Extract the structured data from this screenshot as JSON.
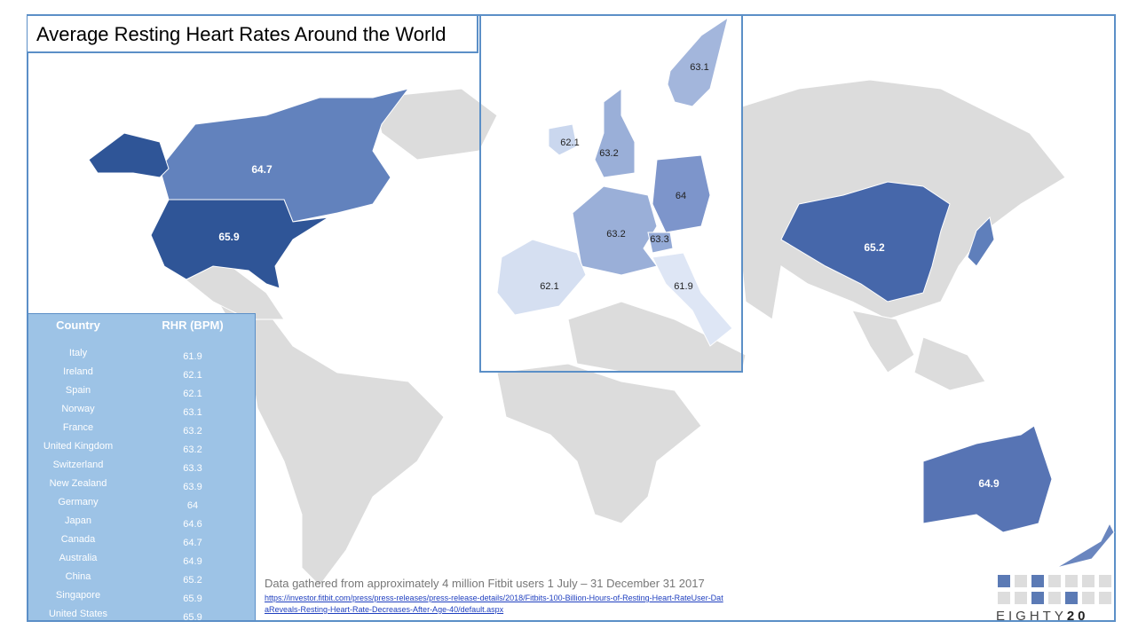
{
  "title": "Average Resting Heart Rates Around the World",
  "table": {
    "headers": [
      "Country",
      "RHR (BPM)"
    ],
    "rows": [
      [
        "Italy",
        61.9
      ],
      [
        "Ireland",
        62.1
      ],
      [
        "Spain",
        62.1
      ],
      [
        "Norway",
        63.1
      ],
      [
        "France",
        63.2
      ],
      [
        "United Kingdom",
        63.2
      ],
      [
        "Switzerland",
        63.3
      ],
      [
        "New Zealand",
        63.9
      ],
      [
        "Germany",
        64
      ],
      [
        "Japan",
        64.6
      ],
      [
        "Canada",
        64.7
      ],
      [
        "Australia",
        64.9
      ],
      [
        "China",
        65.2
      ],
      [
        "Singapore",
        65.9
      ],
      [
        "United States",
        65.9
      ]
    ]
  },
  "regions": [
    {
      "value": 64.7,
      "color": "#6282bd"
    },
    {
      "value": 65.9,
      "color": "#2f5597"
    },
    {
      "value": 65.2,
      "color": "#4667aa"
    },
    {
      "value": 64.9,
      "color": "#5774b4"
    },
    {
      "value": 63.1,
      "color": "#a3b6dc"
    },
    {
      "value": 62.1,
      "color": "#cad7ee"
    },
    {
      "value": 63.2,
      "color": "#9aafd8"
    },
    {
      "value": 64,
      "color": "#7d95cb"
    },
    {
      "value": 63.2,
      "color": "#9aafd8"
    },
    {
      "value": 63.3,
      "color": "#94aad6"
    },
    {
      "value": 62.1,
      "color": "#d5dff1"
    },
    {
      "value": 61.9,
      "color": "#dee6f5"
    }
  ],
  "source": "Data gathered from approximately 4 million Fitbit users 1 July – 31 December 31 2017",
  "link": "https://investor.fitbit.com/press/press-releases/press-release-details/2018/Fitbits-100-Billion-Hours-of-Resting-Heart-RateUser-DataReveals-Resting-Heart-Rate-Decreases-After-Age-40/default.aspx",
  "logo": {
    "word": "EIGHTY",
    "number": "20"
  }
}
